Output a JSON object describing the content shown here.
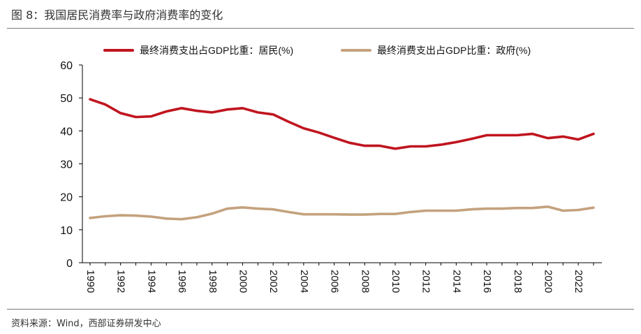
{
  "header": {
    "title": "图 8：我国居民消费率与政府消费率的变化"
  },
  "footer": {
    "source": "资料来源：Wind，西部证券研发中心"
  },
  "chart_data": {
    "type": "line",
    "title": "",
    "xlabel": "",
    "ylabel": "",
    "ylim": [
      0,
      60
    ],
    "yticks": [
      0,
      10,
      20,
      30,
      40,
      50,
      60
    ],
    "xticks": [
      "1990",
      "1992",
      "1994",
      "1996",
      "1998",
      "2000",
      "2002",
      "2004",
      "2006",
      "2008",
      "2010",
      "2012",
      "2014",
      "2016",
      "2018",
      "2020",
      "2022"
    ],
    "x": [
      1990,
      1991,
      1992,
      1993,
      1994,
      1995,
      1996,
      1997,
      1998,
      1999,
      2000,
      2001,
      2002,
      2003,
      2004,
      2005,
      2006,
      2007,
      2008,
      2009,
      2010,
      2011,
      2012,
      2013,
      2014,
      2015,
      2016,
      2017,
      2018,
      2019,
      2020,
      2021,
      2022,
      2023
    ],
    "legend_position": "top",
    "series": [
      {
        "name": "最终消费支出占GDP比重：居民(%)",
        "color": "#c0151f",
        "values": [
          49.6,
          48.0,
          45.4,
          44.2,
          44.4,
          45.9,
          46.9,
          46.1,
          45.6,
          46.5,
          46.9,
          45.6,
          45.0,
          42.8,
          40.8,
          39.5,
          37.9,
          36.4,
          35.5,
          35.5,
          34.6,
          35.3,
          35.3,
          35.8,
          36.6,
          37.6,
          38.7,
          38.7,
          38.7,
          39.1,
          37.8,
          38.3,
          37.4,
          39.1
        ]
      },
      {
        "name": "最终消费支出占GDP比重：政府(%)",
        "color": "#c4a27e",
        "values": [
          13.6,
          14.1,
          14.4,
          14.3,
          14.0,
          13.4,
          13.2,
          13.8,
          14.9,
          16.4,
          16.8,
          16.4,
          16.2,
          15.4,
          14.7,
          14.7,
          14.7,
          14.6,
          14.6,
          14.8,
          14.8,
          15.4,
          15.8,
          15.8,
          15.8,
          16.2,
          16.4,
          16.4,
          16.6,
          16.6,
          17.0,
          15.8,
          16.0,
          16.7
        ]
      }
    ]
  }
}
